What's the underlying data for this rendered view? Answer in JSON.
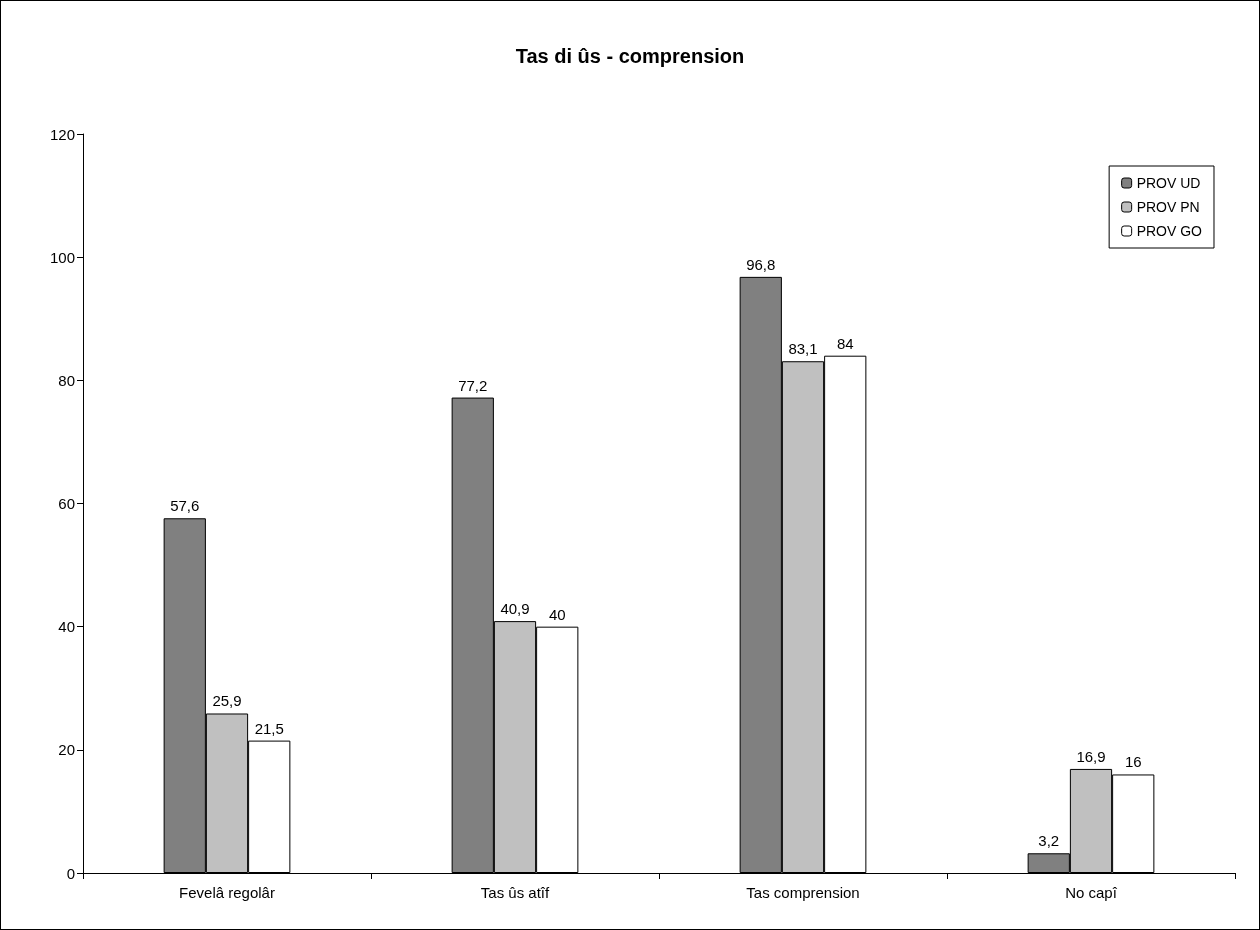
{
  "chart_data": {
    "type": "bar",
    "title": "Tas di ûs - comprension",
    "categories": [
      "Fevelâ regolâr",
      "Tas ûs atîf",
      "Tas comprension",
      "No capî"
    ],
    "series": [
      {
        "name": "PROV UD",
        "color": "#808080",
        "values": [
          57.6,
          77.2,
          96.8,
          3.2
        ],
        "value_labels": [
          "57,6",
          "77,2",
          "96,8",
          "3,2"
        ]
      },
      {
        "name": "PROV PN",
        "color": "#c0c0c0",
        "values": [
          25.9,
          40.9,
          83.1,
          16.9
        ],
        "value_labels": [
          "25,9",
          "40,9",
          "83,1",
          "16,9"
        ]
      },
      {
        "name": "PROV GO",
        "color": "#ffffff",
        "values": [
          21.5,
          40,
          84,
          16
        ],
        "value_labels": [
          "21,5",
          "40",
          "84",
          "16"
        ]
      }
    ],
    "ylim": [
      0,
      120
    ],
    "yticks": [
      0,
      20,
      40,
      60,
      80,
      100,
      120
    ],
    "grid": false,
    "legend": "top right"
  }
}
